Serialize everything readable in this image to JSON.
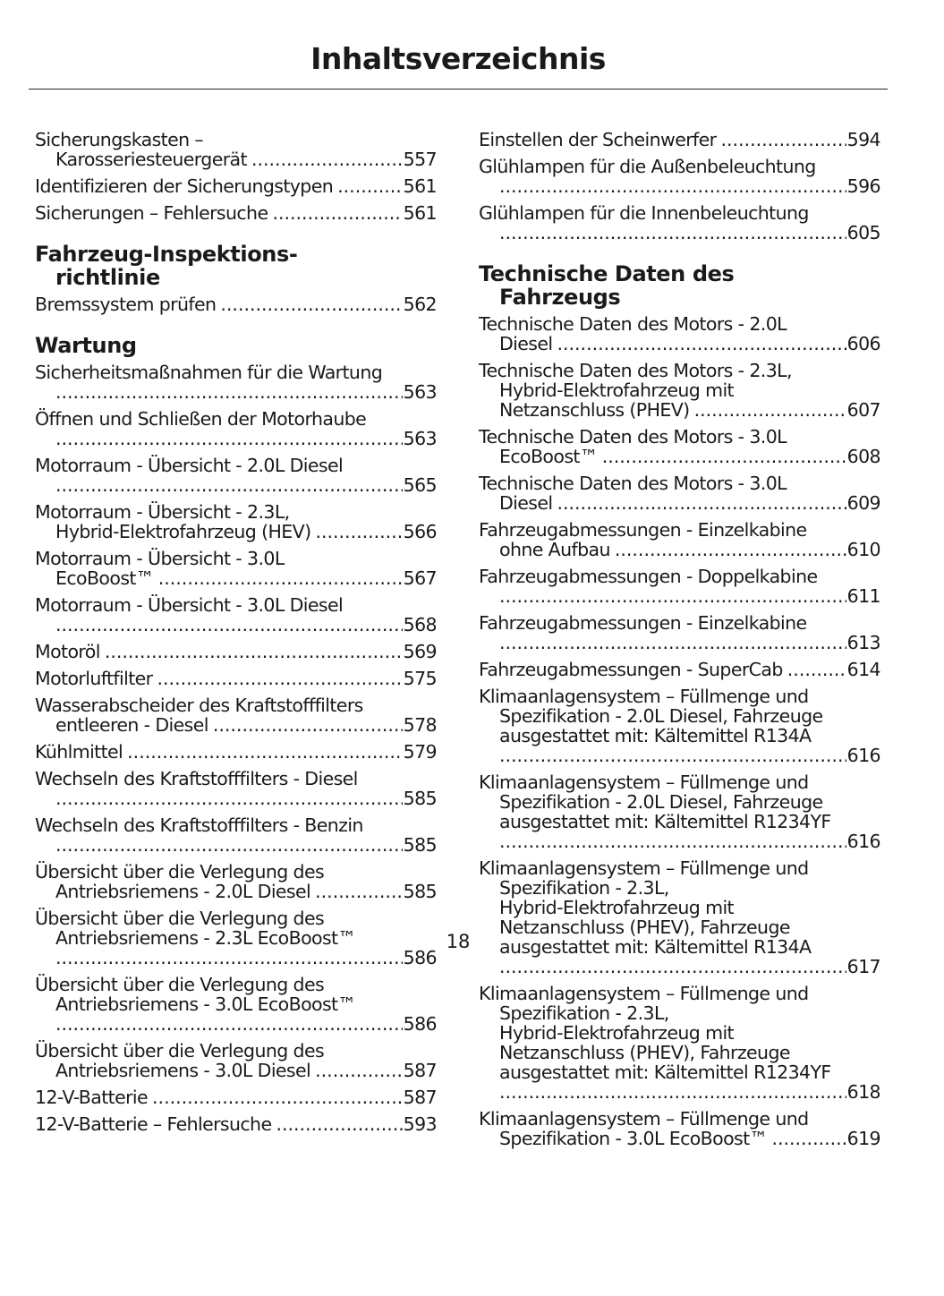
{
  "header": {
    "title": "Inhaltsverzeichnis"
  },
  "left": {
    "items": [
      {
        "type": "entry",
        "lines": [
          "Sicherungskasten –",
          "Karosseriesteuergerät"
        ],
        "page": "557"
      },
      {
        "type": "entry",
        "lines": [
          "Identifizieren der Sicherungstypen"
        ],
        "page": "561"
      },
      {
        "type": "entry",
        "lines": [
          "Sicherungen – Fehlersuche"
        ],
        "page": "561"
      },
      {
        "type": "heading",
        "lines": [
          "Fahrzeug-Inspektions-",
          "richtlinie"
        ]
      },
      {
        "type": "entry",
        "lines": [
          "Bremssystem prüfen"
        ],
        "page": "562"
      },
      {
        "type": "heading",
        "lines": [
          "Wartung"
        ]
      },
      {
        "type": "entry",
        "lines": [
          "Sicherheitsmaßnahmen für die Wartung",
          ""
        ],
        "page": "563"
      },
      {
        "type": "entry",
        "lines": [
          "Öffnen und Schließen der Motorhaube",
          ""
        ],
        "page": "563"
      },
      {
        "type": "entry",
        "lines": [
          "Motorraum - Übersicht - 2.0L Diesel",
          ""
        ],
        "page": "565"
      },
      {
        "type": "entry",
        "lines": [
          "Motorraum - Übersicht - 2.3L,",
          "Hybrid-Elektrofahrzeug  (HEV)"
        ],
        "page": "566"
      },
      {
        "type": "entry",
        "lines": [
          "Motorraum - Übersicht - 3.0L",
          "EcoBoost™"
        ],
        "page": "567"
      },
      {
        "type": "entry",
        "lines": [
          "Motorraum - Übersicht - 3.0L Diesel",
          ""
        ],
        "page": "568"
      },
      {
        "type": "entry",
        "lines": [
          "Motoröl"
        ],
        "page": "569"
      },
      {
        "type": "entry",
        "lines": [
          "Motorluftfilter"
        ],
        "page": "575"
      },
      {
        "type": "entry",
        "lines": [
          "Wasserabscheider des Kraftstofffilters",
          "entleeren - Diesel"
        ],
        "page": "578"
      },
      {
        "type": "entry",
        "lines": [
          "Kühlmittel"
        ],
        "page": "579"
      },
      {
        "type": "entry",
        "lines": [
          "Wechseln des Kraftstofffilters - Diesel",
          ""
        ],
        "page": "585"
      },
      {
        "type": "entry",
        "lines": [
          "Wechseln des Kraftstofffilters - Benzin",
          ""
        ],
        "page": "585"
      },
      {
        "type": "entry",
        "lines": [
          "Übersicht über die Verlegung des",
          "Antriebsriemens - 2.0L Diesel"
        ],
        "page": "585"
      },
      {
        "type": "entry",
        "lines": [
          "Übersicht über die Verlegung des",
          "Antriebsriemens - 2.3L EcoBoost™",
          ""
        ],
        "page": "586"
      },
      {
        "type": "entry",
        "lines": [
          "Übersicht über die Verlegung des",
          "Antriebsriemens - 3.0L EcoBoost™",
          ""
        ],
        "page": "586"
      },
      {
        "type": "entry",
        "lines": [
          "Übersicht über die Verlegung des",
          "Antriebsriemens - 3.0L Diesel"
        ],
        "page": "587"
      },
      {
        "type": "entry",
        "lines": [
          "12-V-Batterie"
        ],
        "page": "587"
      },
      {
        "type": "entry",
        "lines": [
          "12-V-Batterie – Fehlersuche"
        ],
        "page": "593"
      }
    ]
  },
  "right": {
    "items": [
      {
        "type": "entry",
        "lines": [
          "Einstellen der Scheinwerfer"
        ],
        "page": "594"
      },
      {
        "type": "entry",
        "lines": [
          "Glühlampen für die Außenbeleuchtung",
          ""
        ],
        "page": "596"
      },
      {
        "type": "entry",
        "lines": [
          "Glühlampen für die Innenbeleuchtung",
          ""
        ],
        "page": "605"
      },
      {
        "type": "heading",
        "lines": [
          "Technische Daten des",
          "Fahrzeugs"
        ]
      },
      {
        "type": "entry",
        "lines": [
          "Technische Daten des Motors - 2.0L",
          "Diesel"
        ],
        "page": "606"
      },
      {
        "type": "entry",
        "lines": [
          "Technische Daten des Motors - 2.3L,",
          "Hybrid-Elektrofahrzeug mit",
          "Netzanschluss (PHEV)"
        ],
        "page": "607"
      },
      {
        "type": "entry",
        "lines": [
          "Technische Daten des Motors - 3.0L",
          "EcoBoost™"
        ],
        "page": "608"
      },
      {
        "type": "entry",
        "lines": [
          "Technische Daten des Motors - 3.0L",
          "Diesel"
        ],
        "page": "609"
      },
      {
        "type": "entry",
        "lines": [
          "Fahrzeugabmessungen - Einzelkabine",
          "ohne Aufbau"
        ],
        "page": "610"
      },
      {
        "type": "entry",
        "lines": [
          "Fahrzeugabmessungen - Doppelkabine",
          ""
        ],
        "page": "611"
      },
      {
        "type": "entry",
        "lines": [
          "Fahrzeugabmessungen - Einzelkabine",
          ""
        ],
        "page": "613"
      },
      {
        "type": "entry",
        "lines": [
          "Fahrzeugabmessungen - SuperCab"
        ],
        "page": "614"
      },
      {
        "type": "entry",
        "lines": [
          "Klimaanlagensystem – Füllmenge und",
          "Spezifikation - 2.0L Diesel, Fahrzeuge",
          "ausgestattet mit: Kältemittel R134A",
          ""
        ],
        "page": "616"
      },
      {
        "type": "entry",
        "lines": [
          "Klimaanlagensystem – Füllmenge und",
          "Spezifikation - 2.0L Diesel, Fahrzeuge",
          "ausgestattet mit: Kältemittel R1234YF",
          ""
        ],
        "page": "616"
      },
      {
        "type": "entry",
        "lines": [
          "Klimaanlagensystem – Füllmenge und",
          "Spezifikation - 2.3L,",
          "Hybrid-Elektrofahrzeug mit",
          "Netzanschluss (PHEV), Fahrzeuge",
          "ausgestattet mit: Kältemittel R134A",
          ""
        ],
        "page": "617"
      },
      {
        "type": "entry",
        "lines": [
          "Klimaanlagensystem – Füllmenge und",
          "Spezifikation - 2.3L,",
          "Hybrid-Elektrofahrzeug mit",
          "Netzanschluss (PHEV), Fahrzeuge",
          "ausgestattet mit: Kältemittel R1234YF",
          ""
        ],
        "page": "618"
      },
      {
        "type": "entry",
        "lines": [
          "Klimaanlagensystem – Füllmenge und",
          "Spezifikation - 3.0L EcoBoost™"
        ],
        "page": "619"
      }
    ]
  },
  "footer": {
    "page_number": "18"
  }
}
